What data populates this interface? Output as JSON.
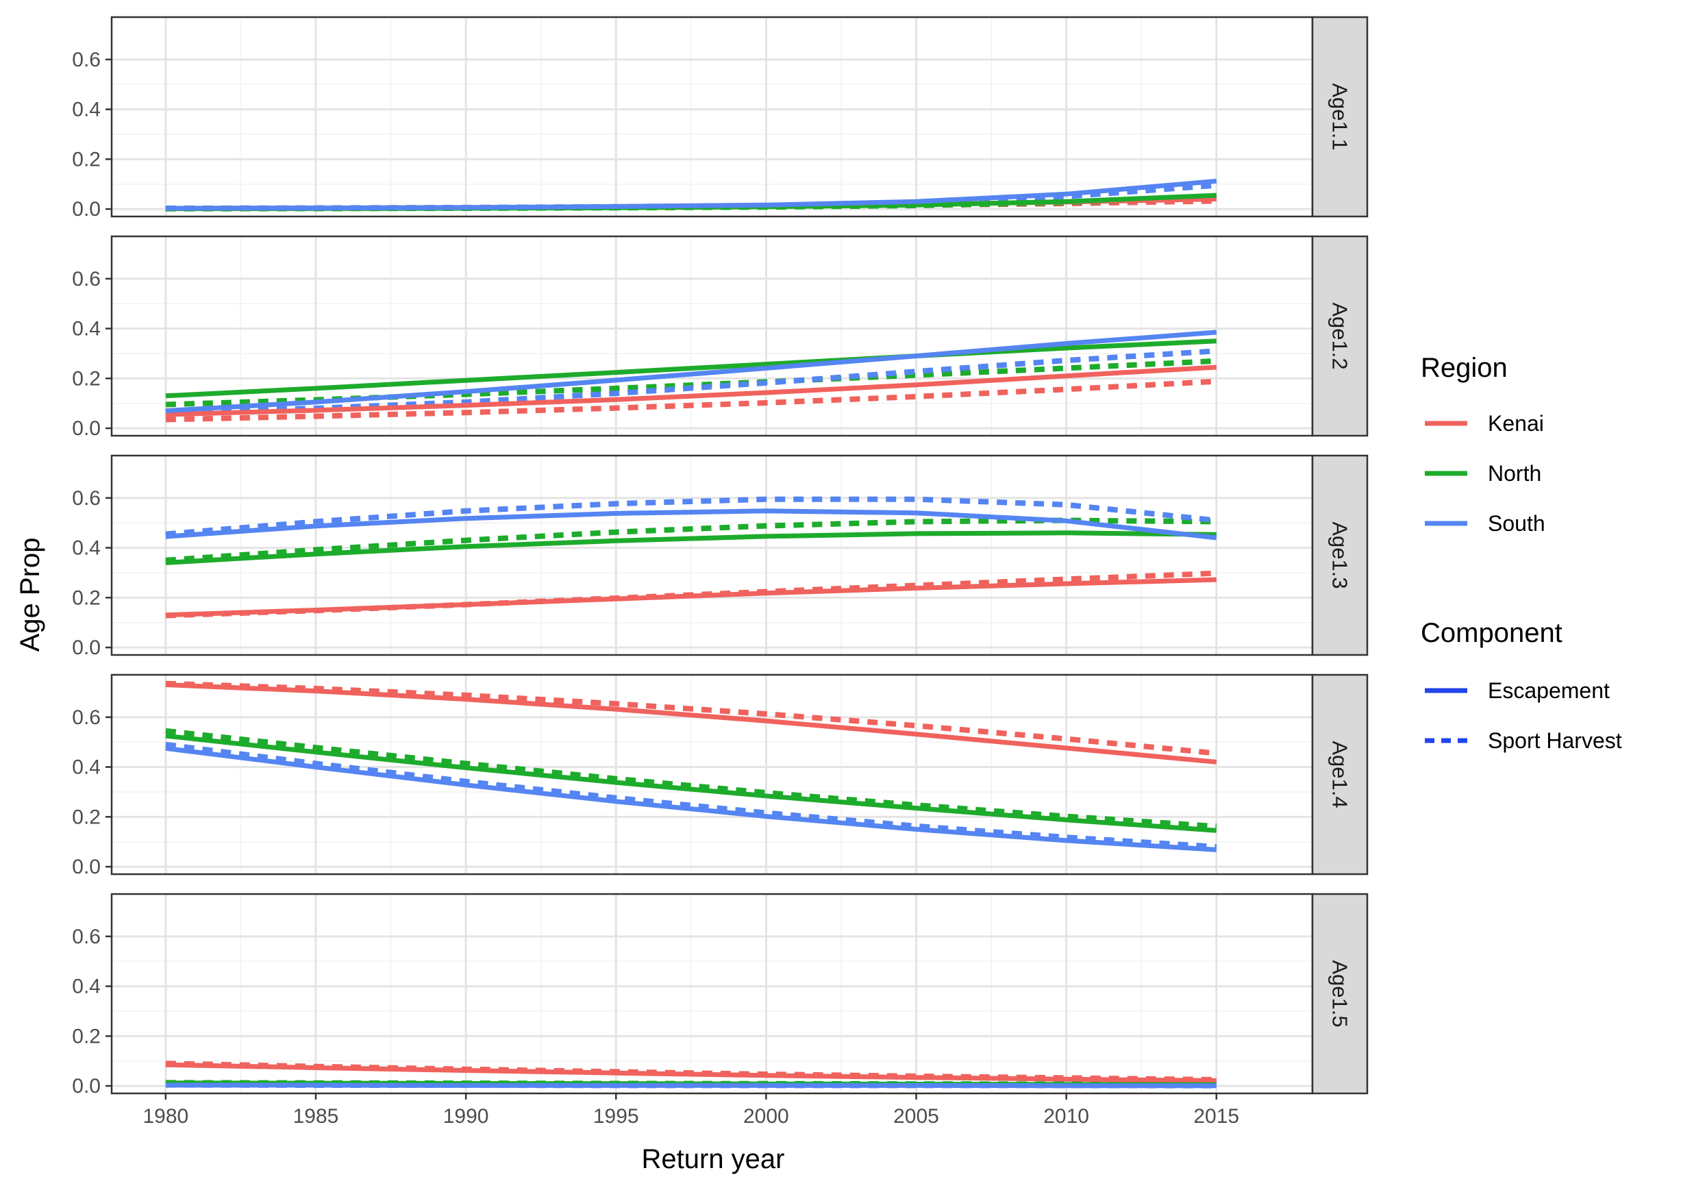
{
  "chart_data": {
    "type": "line",
    "xlabel": "Return year",
    "ylabel": "Age Prop",
    "xlim": [
      1978.2,
      2018.2
    ],
    "ylim": [
      -0.03,
      0.77
    ],
    "x_ticks": [
      1980,
      1985,
      1990,
      1995,
      2000,
      2005,
      2010,
      2015
    ],
    "y_ticks": [
      0.0,
      0.2,
      0.4,
      0.6
    ],
    "y_tick_labels": [
      "0.0",
      "0.2",
      "0.4",
      "0.6"
    ],
    "grid": true,
    "legend_position": "right",
    "x": [
      1980,
      1985,
      1990,
      1995,
      2000,
      2005,
      2010,
      2015
    ],
    "legends": {
      "region": {
        "title": "Region",
        "entries": [
          {
            "key": "Kenai",
            "label": "Kenai",
            "color": "#F0625D"
          },
          {
            "key": "North",
            "label": "North",
            "color": "#1DAB2B"
          },
          {
            "key": "South",
            "label": "South",
            "color": "#5585F2"
          }
        ]
      },
      "component": {
        "title": "Component",
        "entries": [
          {
            "key": "escapement",
            "label": "Escapement",
            "linetype": "solid",
            "color": "#2244EE"
          },
          {
            "key": "sport",
            "label": "Sport Harvest",
            "linetype": "dashed",
            "color": "#2244EE"
          }
        ]
      }
    },
    "panels": [
      {
        "strip": "Age1.1",
        "series": [
          {
            "region": "Kenai",
            "component": "escapement",
            "values": [
              0.003,
              0.004,
              0.006,
              0.008,
              0.012,
              0.018,
              0.028,
              0.04
            ]
          },
          {
            "region": "Kenai",
            "component": "sport",
            "values": [
              0.002,
              0.003,
              0.005,
              0.007,
              0.01,
              0.015,
              0.022,
              0.032
            ]
          },
          {
            "region": "North",
            "component": "escapement",
            "values": [
              0.001,
              0.002,
              0.003,
              0.005,
              0.009,
              0.016,
              0.03,
              0.055
            ]
          },
          {
            "region": "North",
            "component": "sport",
            "values": [
              0.001,
              0.002,
              0.003,
              0.005,
              0.008,
              0.014,
              0.026,
              0.045
            ]
          },
          {
            "region": "South",
            "component": "escapement",
            "values": [
              0.003,
              0.004,
              0.006,
              0.01,
              0.016,
              0.03,
              0.06,
              0.112
            ]
          },
          {
            "region": "South",
            "component": "sport",
            "values": [
              0.003,
              0.004,
              0.006,
              0.009,
              0.014,
              0.026,
              0.05,
              0.095
            ]
          }
        ]
      },
      {
        "strip": "Age1.2",
        "series": [
          {
            "region": "Kenai",
            "component": "escapement",
            "values": [
              0.055,
              0.072,
              0.092,
              0.115,
              0.143,
              0.174,
              0.21,
              0.245
            ]
          },
          {
            "region": "Kenai",
            "component": "sport",
            "values": [
              0.035,
              0.048,
              0.063,
              0.081,
              0.102,
              0.127,
              0.156,
              0.188
            ]
          },
          {
            "region": "North",
            "component": "escapement",
            "values": [
              0.13,
              0.16,
              0.192,
              0.224,
              0.257,
              0.29,
              0.322,
              0.35
            ]
          },
          {
            "region": "North",
            "component": "sport",
            "values": [
              0.095,
              0.114,
              0.136,
              0.16,
              0.186,
              0.213,
              0.241,
              0.27
            ]
          },
          {
            "region": "South",
            "component": "escapement",
            "values": [
              0.07,
              0.105,
              0.147,
              0.193,
              0.241,
              0.29,
              0.34,
              0.385
            ]
          },
          {
            "region": "South",
            "component": "sport",
            "values": [
              0.065,
              0.08,
              0.105,
              0.14,
              0.182,
              0.228,
              0.272,
              0.31
            ]
          }
        ]
      },
      {
        "strip": "Age1.3",
        "series": [
          {
            "region": "Kenai",
            "component": "escapement",
            "values": [
              0.13,
              0.15,
              0.172,
              0.195,
              0.218,
              0.238,
              0.256,
              0.272
            ]
          },
          {
            "region": "Kenai",
            "component": "sport",
            "values": [
              0.128,
              0.148,
              0.172,
              0.198,
              0.224,
              0.249,
              0.274,
              0.298
            ]
          },
          {
            "region": "North",
            "component": "escapement",
            "values": [
              0.34,
              0.375,
              0.405,
              0.428,
              0.446,
              0.457,
              0.46,
              0.453
            ]
          },
          {
            "region": "North",
            "component": "sport",
            "values": [
              0.35,
              0.392,
              0.43,
              0.463,
              0.488,
              0.505,
              0.51,
              0.505
            ]
          },
          {
            "region": "South",
            "component": "escapement",
            "values": [
              0.445,
              0.487,
              0.518,
              0.538,
              0.548,
              0.54,
              0.508,
              0.44
            ]
          },
          {
            "region": "South",
            "component": "sport",
            "values": [
              0.455,
              0.505,
              0.548,
              0.577,
              0.595,
              0.595,
              0.573,
              0.51
            ]
          }
        ]
      },
      {
        "strip": "Age1.4",
        "series": [
          {
            "region": "Kenai",
            "component": "escapement",
            "values": [
              0.73,
              0.705,
              0.672,
              0.632,
              0.585,
              0.532,
              0.476,
              0.42
            ]
          },
          {
            "region": "Kenai",
            "component": "sport",
            "values": [
              0.735,
              0.715,
              0.688,
              0.654,
              0.613,
              0.566,
              0.513,
              0.455
            ]
          },
          {
            "region": "North",
            "component": "escapement",
            "values": [
              0.525,
              0.46,
              0.397,
              0.338,
              0.284,
              0.235,
              0.188,
              0.145
            ]
          },
          {
            "region": "North",
            "component": "sport",
            "values": [
              0.545,
              0.478,
              0.414,
              0.353,
              0.297,
              0.247,
              0.202,
              0.162
            ]
          },
          {
            "region": "South",
            "component": "escapement",
            "values": [
              0.475,
              0.4,
              0.328,
              0.262,
              0.202,
              0.15,
              0.105,
              0.068
            ]
          },
          {
            "region": "South",
            "component": "sport",
            "values": [
              0.49,
              0.414,
              0.342,
              0.276,
              0.216,
              0.163,
              0.118,
              0.08
            ]
          }
        ]
      },
      {
        "strip": "Age1.5",
        "series": [
          {
            "region": "Kenai",
            "component": "escapement",
            "values": [
              0.085,
              0.073,
              0.062,
              0.052,
              0.042,
              0.034,
              0.027,
              0.021
            ]
          },
          {
            "region": "Kenai",
            "component": "sport",
            "values": [
              0.09,
              0.078,
              0.067,
              0.057,
              0.047,
              0.039,
              0.032,
              0.025
            ]
          },
          {
            "region": "North",
            "component": "escapement",
            "values": [
              0.012,
              0.011,
              0.01,
              0.009,
              0.008,
              0.007,
              0.006,
              0.005
            ]
          },
          {
            "region": "North",
            "component": "sport",
            "values": [
              0.013,
              0.012,
              0.011,
              0.01,
              0.009,
              0.008,
              0.007,
              0.006
            ]
          },
          {
            "region": "South",
            "component": "escapement",
            "values": [
              0.003,
              0.003,
              0.002,
              0.002,
              0.002,
              0.002,
              0.001,
              0.001
            ]
          },
          {
            "region": "South",
            "component": "sport",
            "values": [
              0.004,
              0.003,
              0.003,
              0.002,
              0.002,
              0.002,
              0.002,
              0.001
            ]
          }
        ]
      }
    ]
  }
}
